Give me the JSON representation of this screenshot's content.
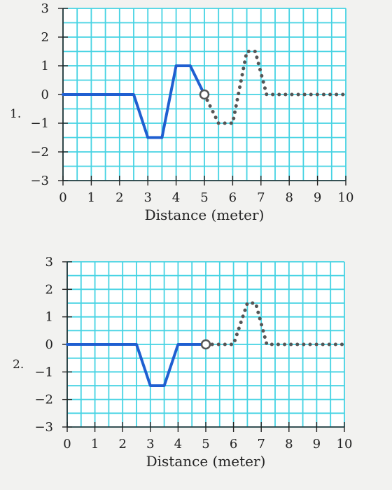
{
  "chart_data": [
    {
      "type": "line",
      "problem_label": "1.",
      "xlabel": "Distance (meter)",
      "ylabel": "",
      "xlim": [
        0,
        10
      ],
      "ylim": [
        -3,
        3
      ],
      "x_ticks": [
        0,
        1,
        2,
        3,
        4,
        5,
        6,
        7,
        8,
        9,
        10
      ],
      "y_ticks": [
        3,
        2,
        1,
        0,
        -1,
        -2,
        -3
      ],
      "y_tick_labels": [
        "3",
        "2",
        "1",
        "0",
        "−1",
        "−2",
        "−3"
      ],
      "grid": true,
      "series": [
        {
          "style": "solid",
          "color": "#1f5fd1",
          "x": [
            0,
            2.5,
            3,
            3.5,
            4,
            4.5,
            5
          ],
          "y": [
            0,
            0,
            -1.5,
            -1.5,
            1,
            1,
            0
          ]
        },
        {
          "style": "dotted",
          "color": "#555555",
          "x": [
            5,
            5.5,
            6,
            6.5,
            6.8,
            7.2,
            7.5,
            10
          ],
          "y": [
            0,
            -1,
            -1,
            1.5,
            1.5,
            0,
            0,
            0
          ]
        }
      ],
      "marker": {
        "x": 5,
        "y": 0,
        "style": "open-circle"
      }
    },
    {
      "type": "line",
      "problem_label": "2.",
      "xlabel": "Distance (meter)",
      "ylabel": "",
      "xlim": [
        0,
        10
      ],
      "ylim": [
        -3,
        3
      ],
      "x_ticks": [
        0,
        1,
        2,
        3,
        4,
        5,
        6,
        7,
        8,
        9,
        10
      ],
      "y_ticks": [
        3,
        2,
        1,
        0,
        -1,
        -2,
        -3
      ],
      "y_tick_labels": [
        "3",
        "2",
        "1",
        "0",
        "−1",
        "−2",
        "−3"
      ],
      "grid": true,
      "series": [
        {
          "style": "solid",
          "color": "#1f5fd1",
          "x": [
            0,
            2.5,
            3,
            3.5,
            4,
            5
          ],
          "y": [
            0,
            0,
            -1.5,
            -1.5,
            0,
            0
          ]
        },
        {
          "style": "dotted",
          "color": "#555555",
          "x": [
            5,
            6,
            6.5,
            6.8,
            7.2,
            7.5,
            10
          ],
          "y": [
            0,
            0,
            1.5,
            1.5,
            0,
            0,
            0
          ]
        }
      ],
      "marker": {
        "x": 5,
        "y": 0,
        "style": "open-circle"
      }
    }
  ]
}
